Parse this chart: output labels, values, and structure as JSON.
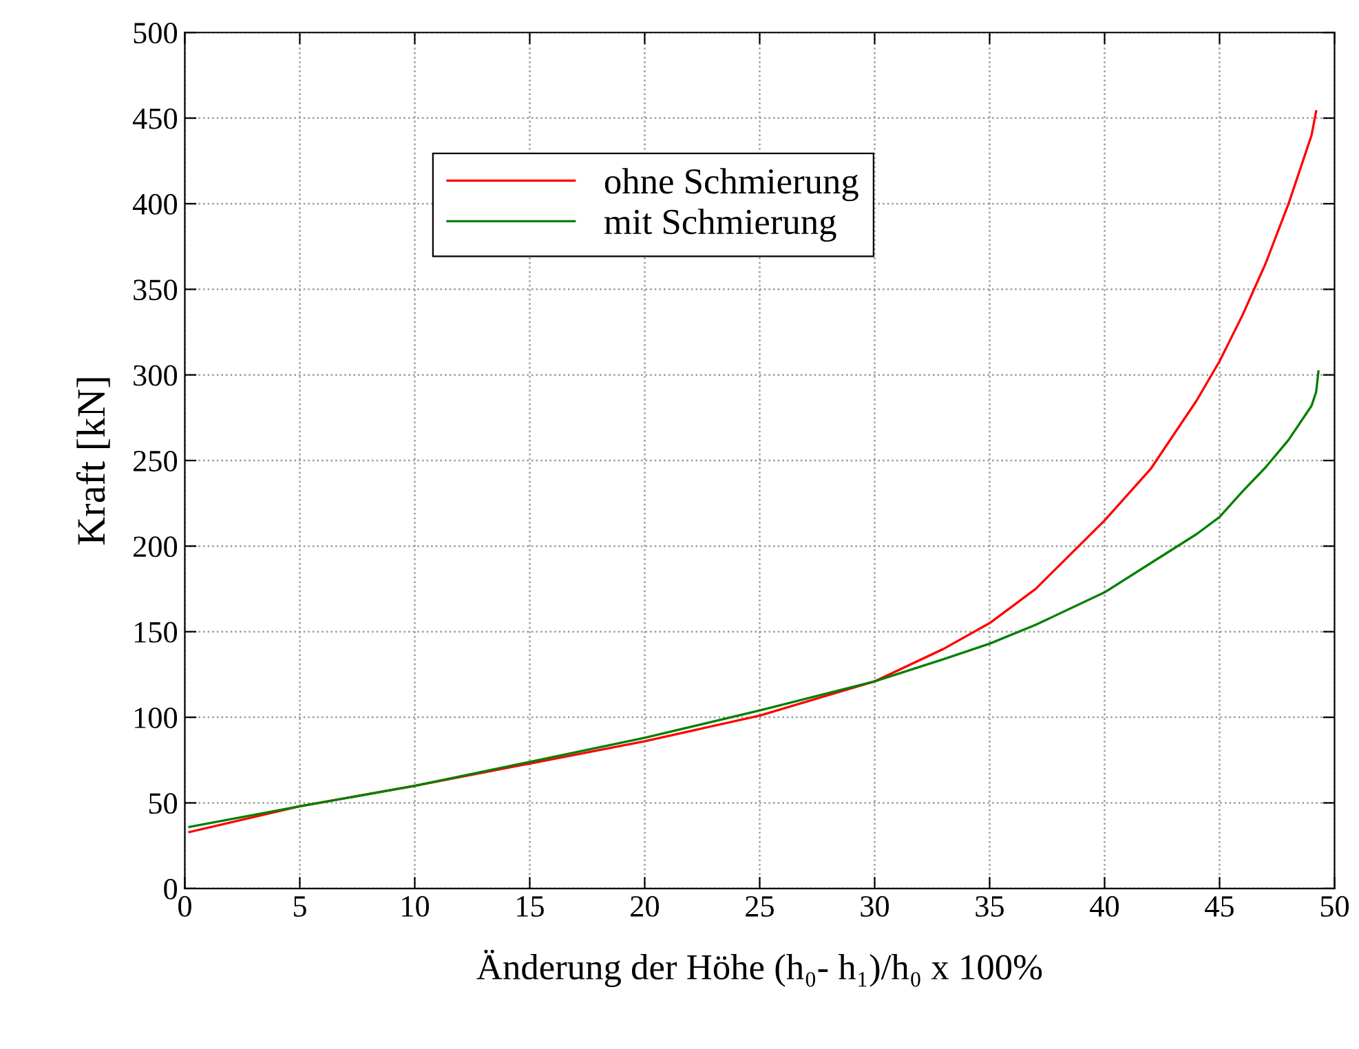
{
  "chart_data": {
    "type": "line",
    "xlabel": "Änderung der Höhe (h₀- h₁)/h₀ x 100%",
    "ylabel": "Kraft [kN]",
    "xlim": [
      0,
      50
    ],
    "xticks": [
      0,
      5,
      10,
      15,
      20,
      25,
      30,
      35,
      40,
      45,
      50
    ],
    "ylim": [
      0,
      500
    ],
    "yticks": [
      0,
      50,
      100,
      150,
      200,
      250,
      300,
      350,
      400,
      450,
      500
    ],
    "grid": true,
    "legend": "top",
    "line_style": "solid",
    "marker": "none",
    "series": [
      {
        "name": "ohne Schmierung",
        "color": "#ff0000",
        "x": [
          0.2,
          5,
          10,
          15,
          20,
          25,
          30,
          33,
          35,
          37,
          40,
          42,
          44,
          45,
          46,
          47,
          48,
          49,
          49.2
        ],
        "values": [
          33,
          48,
          60,
          73,
          86,
          101,
          121,
          140,
          155,
          175,
          215,
          245,
          285,
          308,
          335,
          365,
          400,
          440,
          454
        ]
      },
      {
        "name": "mit Schmierung",
        "color": "#008000",
        "x": [
          0.2,
          5,
          10,
          15,
          20,
          25,
          30,
          33,
          35,
          37,
          40,
          42,
          44,
          45,
          46,
          47,
          48,
          49,
          49.2,
          49.3
        ],
        "values": [
          36,
          48,
          60,
          74,
          88,
          104,
          121,
          134,
          143,
          154,
          173,
          190,
          207,
          217,
          232,
          246,
          262,
          282,
          290,
          302
        ]
      }
    ]
  }
}
